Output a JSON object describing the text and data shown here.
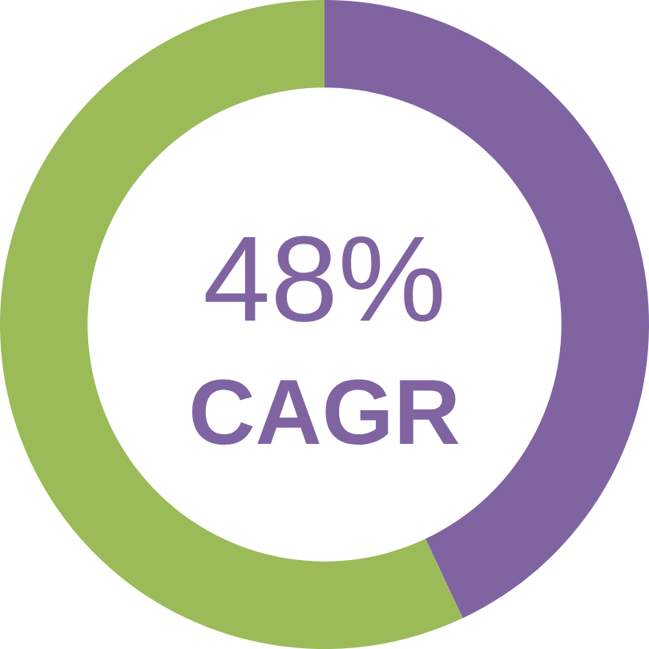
{
  "chart_data": {
    "type": "donut",
    "categories": [
      null,
      null
    ],
    "values": [
      43,
      57
    ],
    "colors": [
      "#8064a2",
      "#9bbb59"
    ],
    "annotations": [
      "48%",
      "CAGR"
    ]
  }
}
